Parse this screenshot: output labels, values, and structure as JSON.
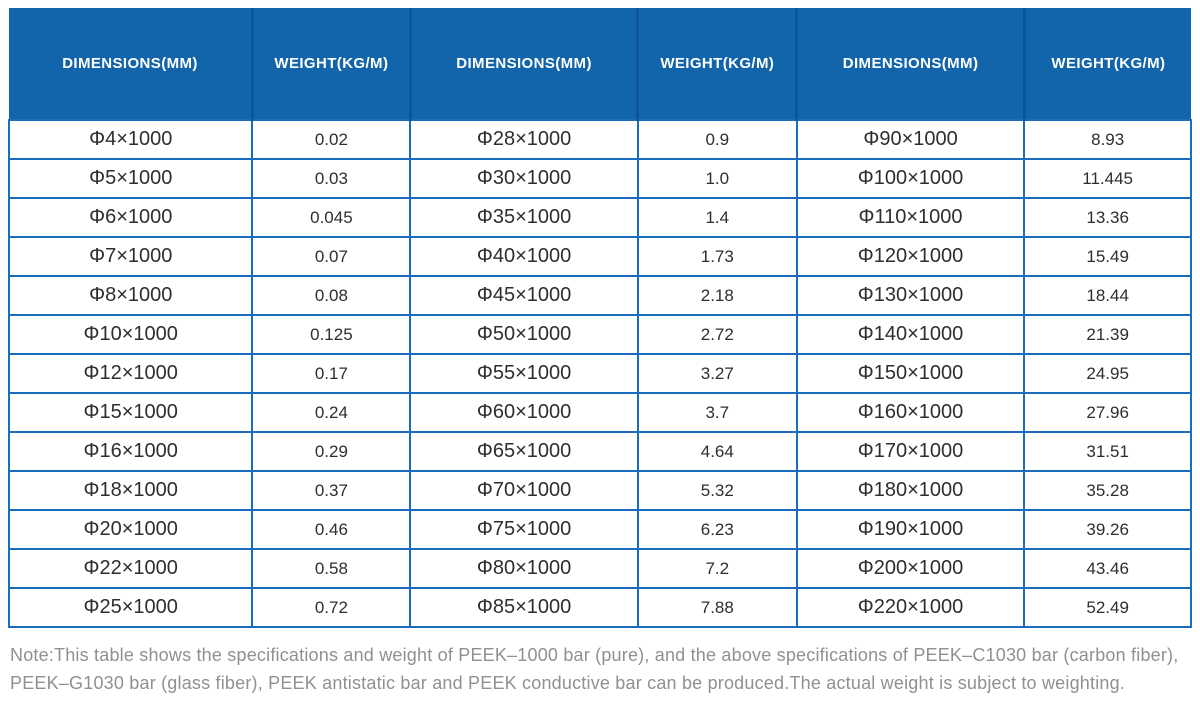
{
  "table": {
    "headers": [
      "DIMENSIONS(MM)",
      "WEIGHT(KG/M)",
      "DIMENSIONS(MM)",
      "WEIGHT(KG/M)",
      "DIMENSIONS(MM)",
      "WEIGHT(KG/M)"
    ],
    "rows": [
      [
        "Φ4×1000",
        "0.02",
        "Φ28×1000",
        "0.9",
        "Φ90×1000",
        "8.93"
      ],
      [
        "Φ5×1000",
        "0.03",
        "Φ30×1000",
        "1.0",
        "Φ100×1000",
        "11.445"
      ],
      [
        "Φ6×1000",
        "0.045",
        "Φ35×1000",
        "1.4",
        "Φ110×1000",
        "13.36"
      ],
      [
        "Φ7×1000",
        "0.07",
        "Φ40×1000",
        "1.73",
        "Φ120×1000",
        "15.49"
      ],
      [
        "Φ8×1000",
        "0.08",
        "Φ45×1000",
        "2.18",
        "Φ130×1000",
        "18.44"
      ],
      [
        "Φ10×1000",
        "0.125",
        "Φ50×1000",
        "2.72",
        "Φ140×1000",
        "21.39"
      ],
      [
        "Φ12×1000",
        "0.17",
        "Φ55×1000",
        "3.27",
        "Φ150×1000",
        "24.95"
      ],
      [
        "Φ15×1000",
        "0.24",
        "Φ60×1000",
        "3.7",
        "Φ160×1000",
        "27.96"
      ],
      [
        "Φ16×1000",
        "0.29",
        "Φ65×1000",
        "4.64",
        "Φ170×1000",
        "31.51"
      ],
      [
        "Φ18×1000",
        "0.37",
        "Φ70×1000",
        "5.32",
        "Φ180×1000",
        "35.28"
      ],
      [
        "Φ20×1000",
        "0.46",
        "Φ75×1000",
        "6.23",
        "Φ190×1000",
        "39.26"
      ],
      [
        "Φ22×1000",
        "0.58",
        "Φ80×1000",
        "7.2",
        "Φ200×1000",
        "43.46"
      ],
      [
        "Φ25×1000",
        "0.72",
        "Φ85×1000",
        "7.88",
        "Φ220×1000",
        "52.49"
      ]
    ]
  },
  "note": "Note:This table shows the specifications and weight of PEEK–1000 bar (pure), and the above specifications of PEEK–C1030 bar (carbon fiber), PEEK–G1030 bar (glass fiber), PEEK antistatic bar and PEEK conductive bar can be produced.The actual weight is subject to weighting.",
  "colors": {
    "header_bg": "#1264ab",
    "header_divider": "#0d5799",
    "border": "#1b6dbc",
    "header_text": "#ffffff",
    "cell_text": "#2e2e2e",
    "note_text": "#8f9091"
  }
}
